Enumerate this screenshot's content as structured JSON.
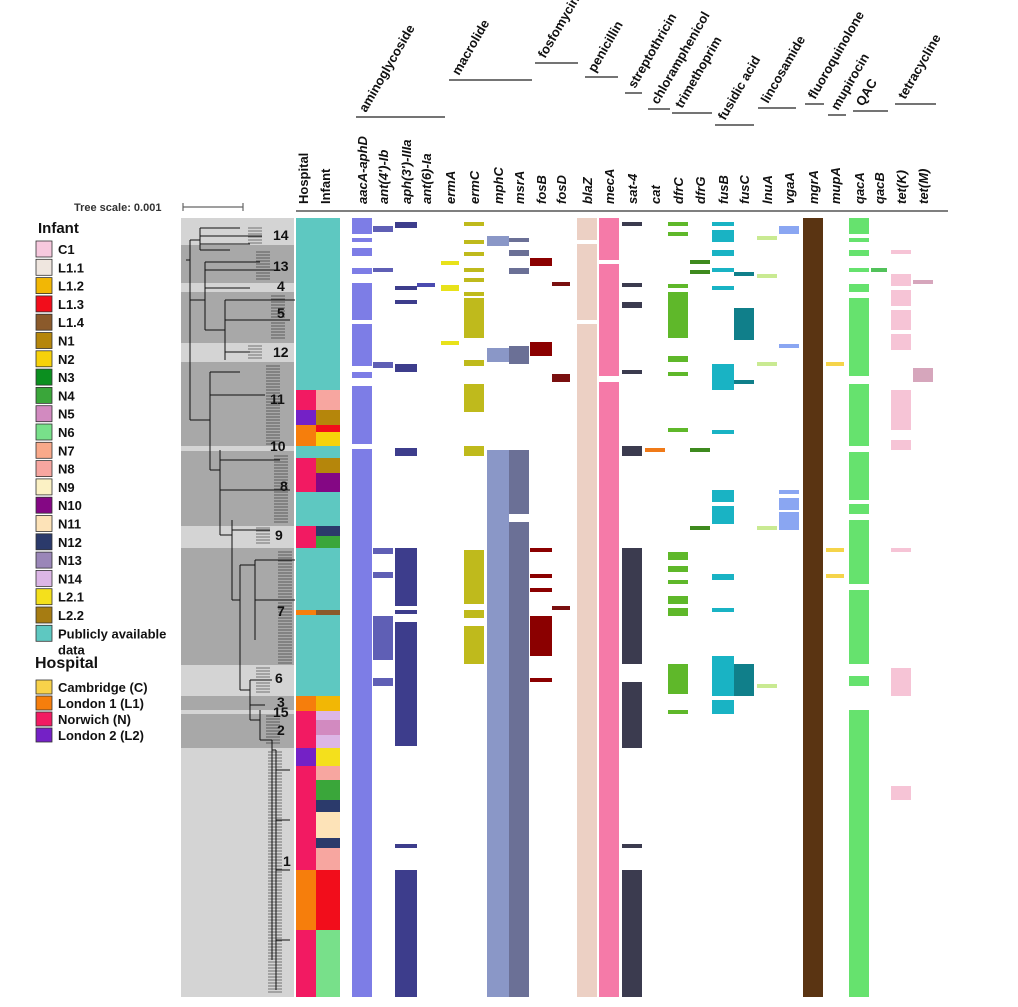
{
  "tree_scale": {
    "label": "Tree scale: 0.001"
  },
  "legend": {
    "infant_title": "Infant",
    "infant_items": [
      {
        "label": "C1",
        "color": "#f7c9de"
      },
      {
        "label": "L1.1",
        "color": "#efe6df"
      },
      {
        "label": "L1.2",
        "color": "#f2b705"
      },
      {
        "label": "L1.3",
        "color": "#f20d1b"
      },
      {
        "label": "L1.4",
        "color": "#8b5a2b"
      },
      {
        "label": "N1",
        "color": "#b5860b"
      },
      {
        "label": "N2",
        "color": "#f7d20a"
      },
      {
        "label": "N3",
        "color": "#0b8f1f"
      },
      {
        "label": "N4",
        "color": "#3aa63a"
      },
      {
        "label": "N5",
        "color": "#d28ac0"
      },
      {
        "label": "N6",
        "color": "#78e08a"
      },
      {
        "label": "N7",
        "color": "#f9a98a"
      },
      {
        "label": "N8",
        "color": "#f7a6a0"
      },
      {
        "label": "N9",
        "color": "#fbf1c4"
      },
      {
        "label": "N10",
        "color": "#840784"
      },
      {
        "label": "N11",
        "color": "#fde3b8"
      },
      {
        "label": "N12",
        "color": "#2b3a6b"
      },
      {
        "label": "N13",
        "color": "#9a86b8"
      },
      {
        "label": "N14",
        "color": "#dcb6e6"
      },
      {
        "label": "L2.1",
        "color": "#f4e01c"
      },
      {
        "label": "L2.2",
        "color": "#a67c12"
      },
      {
        "label": "Publicly available\ndata",
        "color": "#5ec8c1"
      }
    ],
    "hospital_title": "Hospital",
    "hospital_items": [
      {
        "label": "Cambridge (C)",
        "color": "#f8d24a"
      },
      {
        "label": "London 1 (L1)",
        "color": "#f67e0c"
      },
      {
        "label": "Norwich (N)",
        "color": "#f21a62"
      },
      {
        "label": "London 2 (L2)",
        "color": "#7421c6"
      }
    ]
  },
  "column_headers": {
    "hospital": "Hospital",
    "infant": "Infant"
  },
  "antibiotic_classes": [
    {
      "label": "aminoglycoside"
    },
    {
      "label": "macrolide"
    },
    {
      "label": "fosfomycin"
    },
    {
      "label": "penicillin"
    },
    {
      "label": "streptothricin"
    },
    {
      "label": "chloramphenicol"
    },
    {
      "label": "trimethoprim"
    },
    {
      "label": "fusidic acid"
    },
    {
      "label": "lincosamide"
    },
    {
      "label": "fluoroquinolone"
    },
    {
      "label": "mupirocin"
    },
    {
      "label": "QAC"
    },
    {
      "label": "tetracycline"
    }
  ],
  "genes": [
    {
      "name": "aacA-aphD",
      "color": "#7d7de6"
    },
    {
      "name": "ant(4')-Ib",
      "color": "#5f5fb5"
    },
    {
      "name": "aph(3')-IIIa",
      "color": "#3d3d8c"
    },
    {
      "name": "ant(6)-Ia",
      "color": "#4b4bb0"
    },
    {
      "name": "ermA",
      "color": "#e8e21a"
    },
    {
      "name": "ermC",
      "color": "#bfba1c"
    },
    {
      "name": "mphC",
      "color": "#8a97c7"
    },
    {
      "name": "msrA",
      "color": "#6b7096"
    },
    {
      "name": "fosB",
      "color": "#8b0000"
    },
    {
      "name": "fosD",
      "color": "#7a0f0f"
    },
    {
      "name": "blaZ",
      "color": "#ecd0c4"
    },
    {
      "name": "mecA",
      "color": "#f57aa8"
    },
    {
      "name": "sat-4",
      "color": "#3b3b4f"
    },
    {
      "name": "cat",
      "color": "#f07a18"
    },
    {
      "name": "dfrC",
      "color": "#5fb82a"
    },
    {
      "name": "dfrG",
      "color": "#3e8a1e"
    },
    {
      "name": "fusB",
      "color": "#19b3c4"
    },
    {
      "name": "fusC",
      "color": "#107f8a"
    },
    {
      "name": "lnuA",
      "color": "#c9ea92"
    },
    {
      "name": "vgaA",
      "color": "#8aa6f2"
    },
    {
      "name": "mgrA",
      "color": "#5a3412"
    },
    {
      "name": "mupA",
      "color": "#f5d44a"
    },
    {
      "name": "qacA",
      "color": "#66e26e"
    },
    {
      "name": "qacB",
      "color": "#52c25a"
    },
    {
      "name": "tet(K)",
      "color": "#f6c4d6"
    },
    {
      "name": "tet(M)",
      "color": "#d6a6bc"
    }
  ],
  "clades": [
    {
      "label": "14"
    },
    {
      "label": "13"
    },
    {
      "label": "4"
    },
    {
      "label": "5"
    },
    {
      "label": "12"
    },
    {
      "label": "11"
    },
    {
      "label": "10"
    },
    {
      "label": "8"
    },
    {
      "label": "9"
    },
    {
      "label": "7"
    },
    {
      "label": "6"
    },
    {
      "label": "3"
    },
    {
      "label": "15"
    },
    {
      "label": "2"
    },
    {
      "label": "1"
    }
  ]
}
